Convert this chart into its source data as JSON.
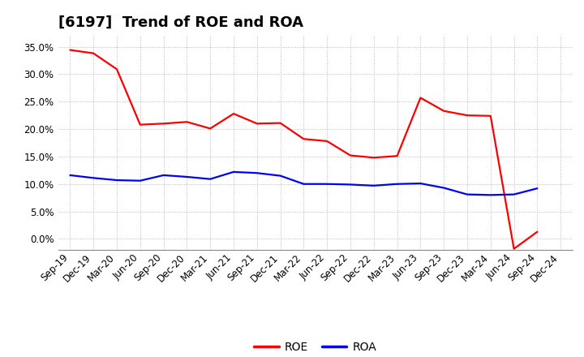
{
  "title": "[6197]  Trend of ROE and ROA",
  "x_labels": [
    "Sep-19",
    "Dec-19",
    "Mar-20",
    "Jun-20",
    "Sep-20",
    "Dec-20",
    "Mar-21",
    "Jun-21",
    "Sep-21",
    "Dec-21",
    "Mar-22",
    "Jun-22",
    "Sep-22",
    "Dec-22",
    "Mar-23",
    "Jun-23",
    "Sep-23",
    "Dec-23",
    "Mar-24",
    "Jun-24",
    "Sep-24",
    "Dec-24"
  ],
  "roe": [
    0.344,
    0.338,
    0.309,
    0.208,
    0.21,
    0.213,
    0.201,
    0.228,
    0.21,
    0.211,
    0.182,
    0.178,
    0.152,
    0.148,
    0.151,
    0.257,
    0.233,
    0.225,
    0.224,
    -0.018,
    0.013,
    null
  ],
  "roa": [
    0.116,
    0.111,
    0.107,
    0.106,
    0.116,
    0.113,
    0.109,
    0.122,
    0.12,
    0.115,
    0.1,
    0.1,
    0.099,
    0.097,
    0.1,
    0.101,
    0.093,
    0.081,
    0.08,
    0.081,
    0.092,
    null
  ],
  "roe_color": "#ff0000",
  "roa_color": "#0000ff",
  "background_color": "#ffffff",
  "grid_color": "#aaaaaa",
  "ylim": [
    -0.02,
    0.37
  ],
  "yticks": [
    0.0,
    0.05,
    0.1,
    0.15,
    0.2,
    0.25,
    0.3,
    0.35
  ],
  "title_fontsize": 13,
  "axis_fontsize": 8.5,
  "legend_fontsize": 10,
  "line_width": 1.6
}
